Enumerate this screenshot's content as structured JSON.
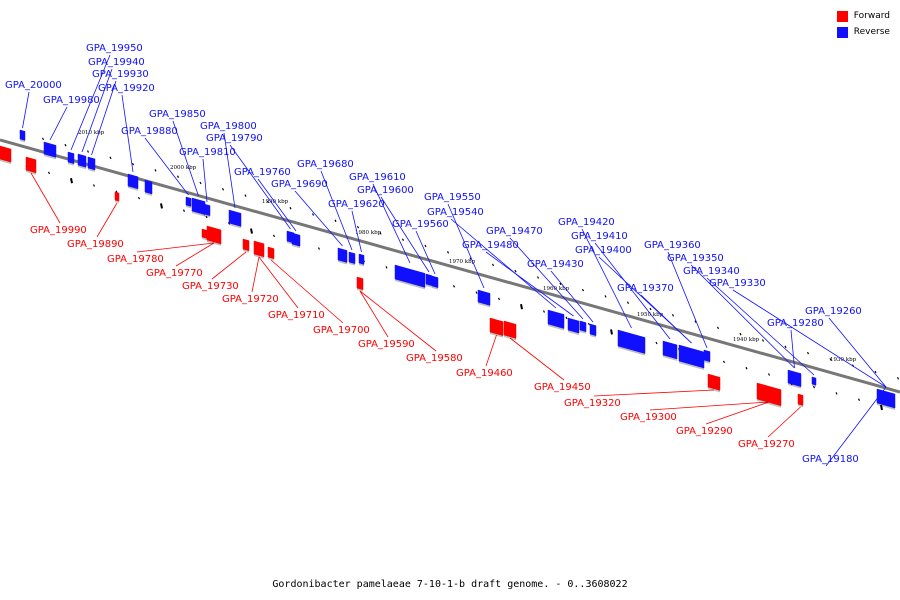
{
  "colors": {
    "forward": "#ff0000",
    "reverse": "#1010ff",
    "backbone": "#777777"
  },
  "legend": {
    "forward_label": "Forward",
    "reverse_label": "Reverse"
  },
  "caption": "Gordonibacter pamelaeae 7-10-1-b draft genome. - 0..3608022",
  "scale_labels": [
    "2010 kbp",
    "2000 kbp",
    "1990 kbp",
    "1980 kbp",
    "1970 kbp",
    "1960 kbp",
    "1950 kbp",
    "1940 kbp",
    "1930 kbp"
  ],
  "reverse_genes": [
    "GPA_20000",
    "GPA_19980",
    "GPA_19950",
    "GPA_19940",
    "GPA_19930",
    "GPA_19920",
    "GPA_19880",
    "GPA_19850",
    "GPA_19810",
    "GPA_19800",
    "GPA_19790",
    "GPA_19760",
    "GPA_19690",
    "GPA_19680",
    "GPA_19620",
    "GPA_19610",
    "GPA_19600",
    "GPA_19560",
    "GPA_19550",
    "GPA_19540",
    "GPA_19480",
    "GPA_19470",
    "GPA_19430",
    "GPA_19420",
    "GPA_19410",
    "GPA_19400",
    "GPA_19370",
    "GPA_19360",
    "GPA_19350",
    "GPA_19340",
    "GPA_19330",
    "GPA_19280",
    "GPA_19260",
    "GPA_19180"
  ],
  "forward_genes": [
    "GPA_19990",
    "GPA_19890",
    "GPA_19780",
    "GPA_19770",
    "GPA_19730",
    "GPA_19720",
    "GPA_19710",
    "GPA_19700",
    "GPA_19590",
    "GPA_19580",
    "GPA_19460",
    "GPA_19450",
    "GPA_19320",
    "GPA_19300",
    "GPA_19290",
    "GPA_19270"
  ]
}
